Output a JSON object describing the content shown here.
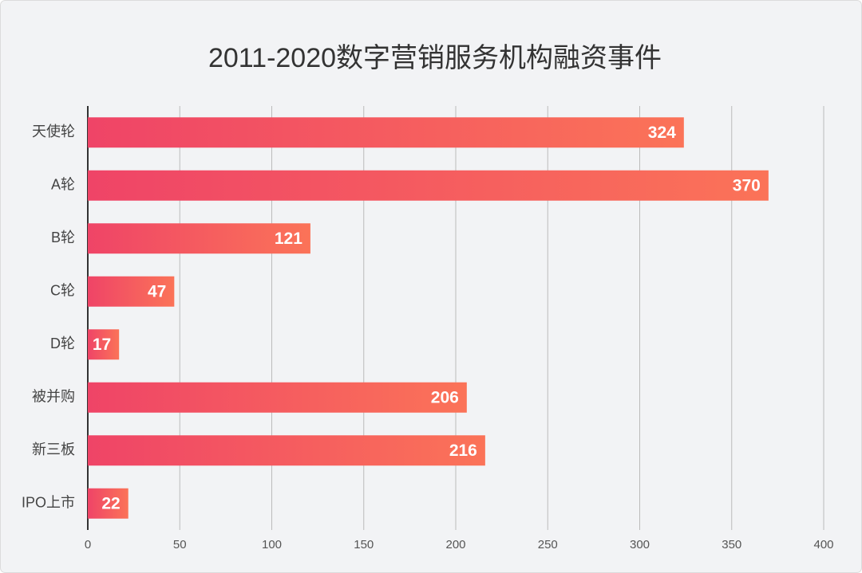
{
  "chart_data": {
    "type": "bar",
    "orientation": "horizontal",
    "title": "2011-2020数字营销服务机构融资事件",
    "categories": [
      "天使轮",
      "A轮",
      "B轮",
      "C轮",
      "D轮",
      "被并购",
      "新三板",
      "IPO上市"
    ],
    "values": [
      324,
      370,
      121,
      47,
      17,
      206,
      216,
      22
    ],
    "gradient": [
      "#ef4467",
      "#fb7358"
    ],
    "xlim": [
      0,
      400
    ],
    "xticks": [
      0,
      50,
      100,
      150,
      200,
      250,
      300,
      350,
      400
    ],
    "grid": true
  }
}
